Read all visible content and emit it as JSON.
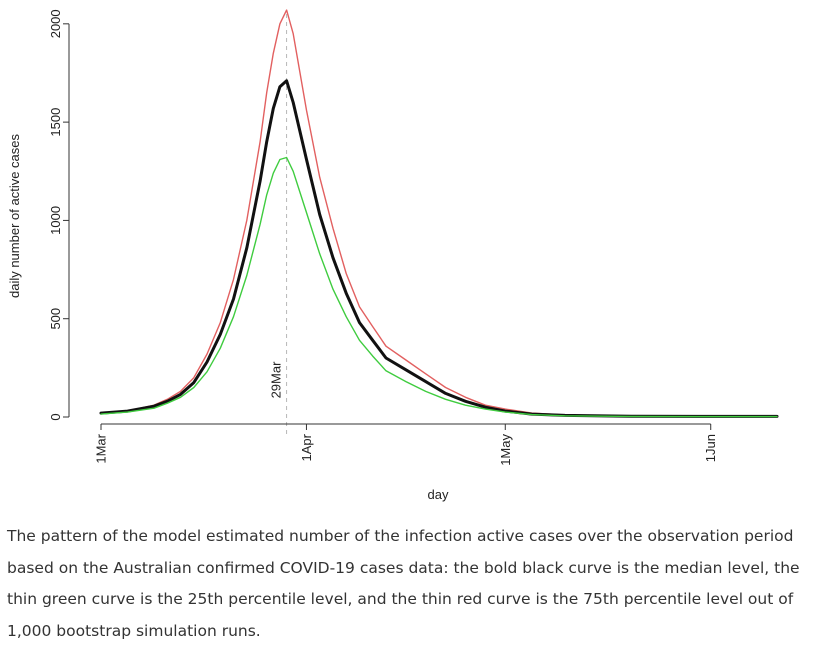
{
  "chart_data": {
    "type": "line",
    "xlabel": "day",
    "ylabel": "daily number of active cases",
    "x_start_date": "1Mar",
    "x_ticks": [
      {
        "day": 0,
        "label": "1Mar"
      },
      {
        "day": 31,
        "label": "1Apr"
      },
      {
        "day": 61,
        "label": "1May"
      },
      {
        "day": 92,
        "label": "1Jun"
      }
    ],
    "y_ticks": [
      0,
      500,
      1000,
      1500,
      2000
    ],
    "xlim": [
      0,
      102
    ],
    "ylim": [
      0,
      2050
    ],
    "grid": false,
    "annotation": {
      "day": 28,
      "label": "29Mar",
      "style": "dashed-vertical-line"
    },
    "series": [
      {
        "name": "75th percentile",
        "color": "#e26060",
        "width": "thin",
        "x": [
          0,
          4,
          8,
          10,
          12,
          14,
          16,
          18,
          20,
          22,
          24,
          25,
          26,
          27,
          28,
          29,
          31,
          33,
          35,
          37,
          39,
          41,
          43,
          46,
          49,
          52,
          55,
          58,
          61,
          65,
          70,
          80,
          90,
          102
        ],
        "y": [
          20,
          30,
          60,
          90,
          130,
          200,
          320,
          480,
          700,
          1000,
          1400,
          1650,
          1850,
          2000,
          2070,
          1950,
          1560,
          1220,
          960,
          730,
          560,
          460,
          360,
          290,
          220,
          150,
          100,
          60,
          40,
          20,
          10,
          5,
          3,
          3
        ]
      },
      {
        "name": "median",
        "color": "#111111",
        "width": "bold",
        "x": [
          0,
          4,
          8,
          10,
          12,
          14,
          16,
          18,
          20,
          22,
          24,
          25,
          26,
          27,
          28,
          29,
          31,
          33,
          35,
          37,
          39,
          41,
          43,
          46,
          49,
          52,
          55,
          58,
          61,
          65,
          70,
          80,
          90,
          102
        ],
        "y": [
          20,
          30,
          55,
          80,
          115,
          175,
          280,
          420,
          600,
          860,
          1200,
          1400,
          1570,
          1680,
          1710,
          1600,
          1310,
          1030,
          810,
          630,
          480,
          390,
          300,
          240,
          180,
          120,
          80,
          50,
          30,
          15,
          8,
          4,
          3,
          3
        ]
      },
      {
        "name": "25th percentile",
        "color": "#3fcc3f",
        "width": "thin",
        "x": [
          0,
          4,
          8,
          10,
          12,
          14,
          16,
          18,
          20,
          22,
          24,
          25,
          26,
          27,
          28,
          29,
          31,
          33,
          35,
          37,
          39,
          41,
          43,
          46,
          49,
          52,
          55,
          58,
          61,
          65,
          70,
          80,
          90,
          102
        ],
        "y": [
          15,
          25,
          45,
          70,
          100,
          150,
          230,
          350,
          510,
          720,
          980,
          1130,
          1240,
          1310,
          1320,
          1250,
          1040,
          830,
          650,
          510,
          390,
          310,
          235,
          180,
          130,
          90,
          60,
          40,
          25,
          12,
          6,
          3,
          2,
          2
        ]
      }
    ]
  },
  "caption": "The pattern of the model estimated number of the infection active cases over the observation period based on the Australian confirmed COVID-19 cases data: the bold black curve is the median level, the thin green curve is the 25th percentile level, and the thin red curve is the 75th percentile level out of 1,000 bootstrap simulation runs."
}
